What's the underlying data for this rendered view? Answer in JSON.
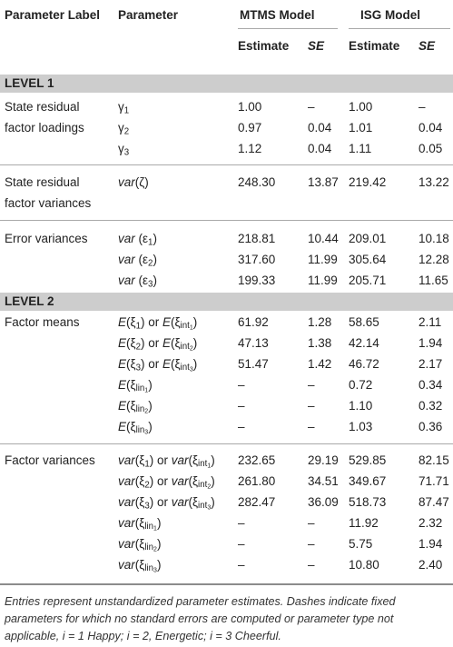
{
  "header": {
    "col_label": "Parameter Label",
    "col_param": "Parameter",
    "mtms": "MTMS Model",
    "isg": "ISG Model",
    "estimate": "Estimate",
    "se": "SE"
  },
  "level1": "LEVEL 1",
  "level2": "LEVEL 2",
  "groups": {
    "loadings_l1": "State residual",
    "loadings_l2": "factor loadings",
    "resvar_l1": "State residual",
    "resvar_l2": "factor variances",
    "errvar": "Error variances",
    "means": "Factor means",
    "facvar": "Factor variances"
  },
  "rows": {
    "g1": {
      "p": "γ",
      "s": "1",
      "e1": "1.00",
      "se1": "–",
      "e2": "1.00",
      "se2": "–"
    },
    "g2": {
      "p": "γ",
      "s": "2",
      "e1": "0.97",
      "se1": "0.04",
      "e2": "1.01",
      "se2": "0.04"
    },
    "g3": {
      "p": "γ",
      "s": "3",
      "e1": "1.12",
      "se1": "0.04",
      "e2": "1.11",
      "se2": "0.05"
    },
    "rv": {
      "fn": "var",
      "arg": "(ζ)",
      "e1": "248.30",
      "se1": "13.87",
      "e2": "219.42",
      "se2": "13.22"
    },
    "ev1": {
      "fn": "var",
      "arg": " (ε",
      "s": "1",
      "close": ")",
      "e1": "218.81",
      "se1": "10.44",
      "e2": "209.01",
      "se2": "10.18"
    },
    "ev2": {
      "fn": "var",
      "arg": " (ε",
      "s": "2",
      "close": ")",
      "e1": "317.60",
      "se1": "11.99",
      "e2": "305.64",
      "se2": "12.28"
    },
    "ev3": {
      "fn": "var",
      "arg": " (ε",
      "s": "3",
      "close": ")",
      "e1": "199.33",
      "se1": "11.99",
      "e2": "205.71",
      "se2": "11.65"
    },
    "m1": {
      "fn": "E",
      "arg": "(ξ",
      "s": "1",
      "or": ") or ",
      "fn2": "E",
      "arg2": "(ξ",
      "s2": "int",
      "ss2": "1",
      "close": ")",
      "e1": "61.92",
      "se1": "1.28",
      "e2": "58.65",
      "se2": "2.11"
    },
    "m2": {
      "fn": "E",
      "arg": "(ξ",
      "s": "2",
      "or": ") or ",
      "fn2": "E",
      "arg2": "(ξ",
      "s2": "int",
      "ss2": "2",
      "close": ")",
      "e1": "47.13",
      "se1": "1.38",
      "e2": "42.14",
      "se2": "1.94"
    },
    "m3": {
      "fn": "E",
      "arg": "(ξ",
      "s": "3",
      "or": ") or ",
      "fn2": "E",
      "arg2": "(ξ",
      "s2": "int",
      "ss2": "3",
      "close": ")",
      "e1": "51.47",
      "se1": "1.42",
      "e2": "46.72",
      "se2": "2.17"
    },
    "ml1": {
      "fn": "E",
      "arg": "(ξ",
      "s": "lin",
      "ss": "1",
      "close": ")",
      "e1": "–",
      "se1": "–",
      "e2": "0.72",
      "se2": "0.34"
    },
    "ml2": {
      "fn": "E",
      "arg": "(ξ",
      "s": "lin",
      "ss": "2",
      "close": ")",
      "e1": "–",
      "se1": "–",
      "e2": "1.10",
      "se2": "0.32"
    },
    "ml3": {
      "fn": "E",
      "arg": "(ξ",
      "s": "lin",
      "ss": "3",
      "close": ")",
      "e1": "–",
      "se1": "–",
      "e2": "1.03",
      "se2": "0.36"
    },
    "v1": {
      "fn": "var",
      "arg": "(ξ",
      "s": "1",
      "or": ") or ",
      "fn2": "var",
      "arg2": "(ξ",
      "s2": "int",
      "ss2": "1",
      "close": ")",
      "e1": "232.65",
      "se1": "29.19",
      "e2": "529.85",
      "se2": "82.15"
    },
    "v2": {
      "fn": "var",
      "arg": "(ξ",
      "s": "2",
      "or": ") or ",
      "fn2": "var",
      "arg2": "(ξ",
      "s2": "int",
      "ss2": "2",
      "close": ")",
      "e1": "261.80",
      "se1": "34.51",
      "e2": "349.67",
      "se2": "71.71"
    },
    "v3": {
      "fn": "var",
      "arg": "(ξ",
      "s": "3",
      "or": ") or ",
      "fn2": "var",
      "arg2": "(ξ",
      "s2": "int",
      "ss2": "3",
      "close": ")",
      "e1": "282.47",
      "se1": "36.09",
      "e2": "518.73",
      "se2": "87.47"
    },
    "vl1": {
      "fn": "var",
      "arg": "(ξ",
      "s": "lin",
      "ss": "1",
      "close": ")",
      "e1": "–",
      "se1": "–",
      "e2": "11.92",
      "se2": "2.32"
    },
    "vl2": {
      "fn": "var",
      "arg": "(ξ",
      "s": "lin",
      "ss": "2",
      "close": ")",
      "e1": "–",
      "se1": "–",
      "e2": "5.75",
      "se2": "1.94"
    },
    "vl3": {
      "fn": "var",
      "arg": "(ξ",
      "s": "lin",
      "ss": "3",
      "close": ")",
      "e1": "–",
      "se1": "–",
      "e2": "10.80",
      "se2": "2.40"
    }
  },
  "footnote": "Entries represent unstandardized parameter estimates. Dashes indicate fixed parameters for which no standard errors are computed or parameter type not applicable, i = 1 Happy; i = 2, Energetic; i = 3 Cheerful."
}
